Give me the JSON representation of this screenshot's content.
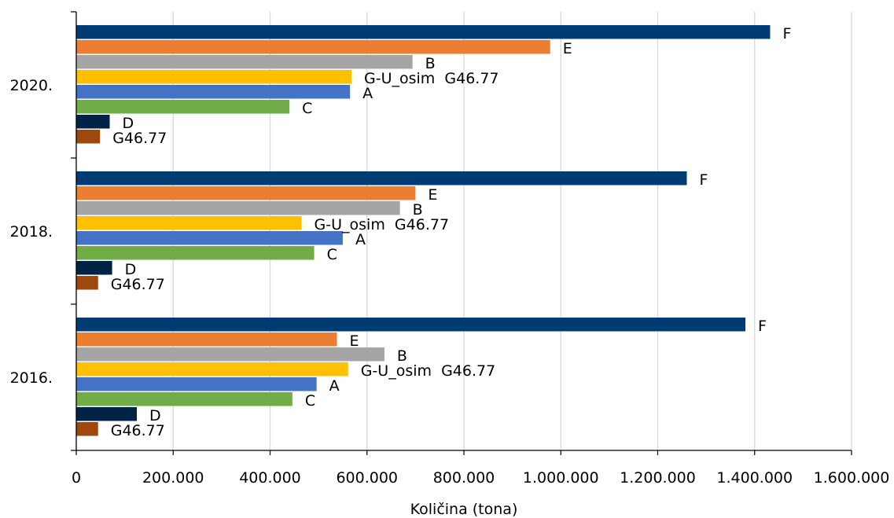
{
  "chart_data": {
    "type": "bar",
    "orientation": "horizontal",
    "title": "",
    "xlabel": "Količina (tona)",
    "ylabel": "",
    "xlim": [
      0,
      1600000
    ],
    "x_ticks": [
      0,
      200000,
      400000,
      600000,
      800000,
      1000000,
      1200000,
      1400000,
      1600000
    ],
    "x_tick_labels": [
      "0",
      "200.000",
      "400.000",
      "600.000",
      "800.000",
      "1.000.000",
      "1.200.000",
      "1.400.000",
      "1.600.000"
    ],
    "grid": "vertical",
    "legend": "none (series labels at bar ends)",
    "categories": [
      "2020.",
      "2018.",
      "2016."
    ],
    "series": [
      {
        "name": "F",
        "color": "#003b73",
        "values": [
          1432000,
          1260000,
          1381000
        ]
      },
      {
        "name": "E",
        "color": "#ed7d31",
        "values": [
          978000,
          700000,
          538000
        ]
      },
      {
        "name": "B",
        "color": "#a5a5a5",
        "values": [
          694000,
          668000,
          636000
        ]
      },
      {
        "name": "G-U_osim  G46.77",
        "color": "#ffc000",
        "values": [
          568000,
          465000,
          561000
        ]
      },
      {
        "name": "A",
        "color": "#4472c4",
        "values": [
          565000,
          550000,
          496000
        ]
      },
      {
        "name": "C",
        "color": "#70ad47",
        "values": [
          440000,
          491000,
          446000
        ]
      },
      {
        "name": "D",
        "color": "#002244",
        "values": [
          69000,
          74000,
          125000
        ]
      },
      {
        "name": "G46.77",
        "color": "#9e480e",
        "values": [
          49000,
          45000,
          45000
        ]
      }
    ]
  }
}
